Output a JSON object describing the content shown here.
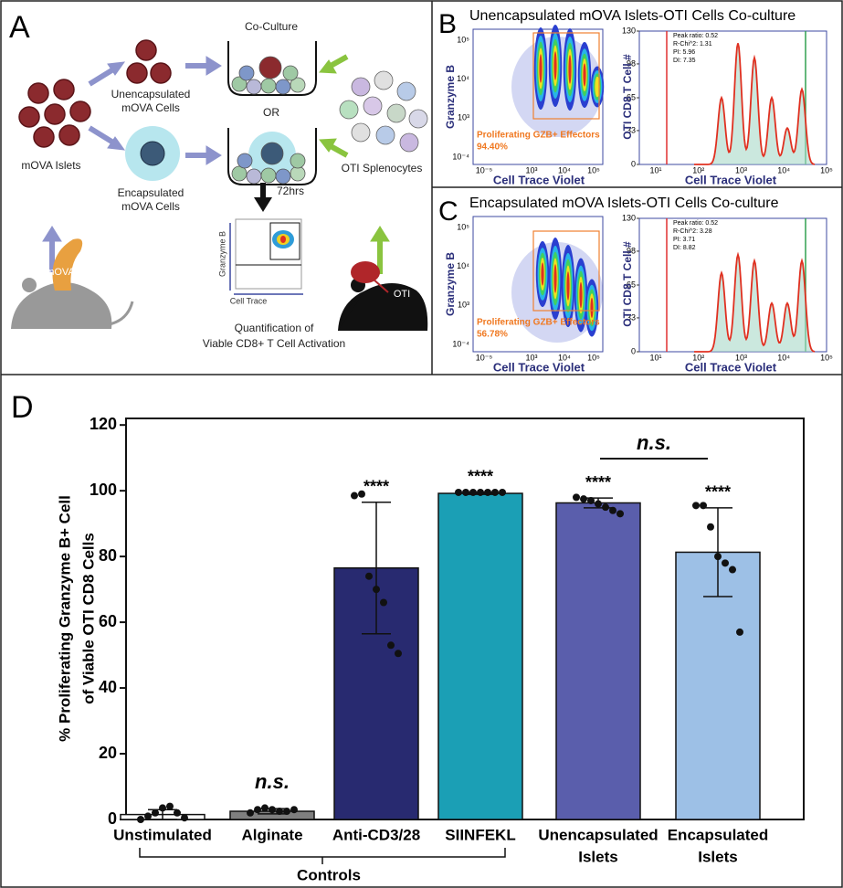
{
  "panel_a": {
    "label": "A",
    "co_culture": "Co-Culture",
    "unencapsulated": [
      "Unencapsulated",
      "mOVA Cells"
    ],
    "or": "OR",
    "islets": "mOVA Islets",
    "encapsulated": [
      "Encapsulated",
      "mOVA Cells"
    ],
    "splenocytes": "OTI Splenocytes",
    "time": "72hrs",
    "mini_y_label": "Granzyme B",
    "mini_x_label": "Cell Trace",
    "quantification": [
      "Quantification of",
      "Viable CD8+ T Cell Activation"
    ],
    "donor_mouse": "mOVA",
    "oti_mouse": "OTI"
  },
  "panel_b": {
    "label": "B",
    "title": "Unencapsulated mOVA Islets-OTI Cells Co-culture",
    "dot_plot": {
      "y_label": "Granzyme B",
      "x_label": "Cell Trace Violet",
      "yticks": [
        "10⁵",
        "10⁴",
        "10³",
        "10⁻⁴"
      ],
      "xticks": [
        "10⁻⁵",
        "10³",
        "10⁴",
        "10⁵"
      ],
      "gate_label": "Proliferating GZB+ Effectors",
      "gate_percent": "94.40%"
    },
    "histogram": {
      "y_label": "OTI CD8 T Cell #",
      "x_label": "Cell Trace Violet",
      "yticks": [
        130,
        98,
        65,
        33,
        0
      ],
      "xticks": [
        "10¹",
        "10²",
        "10³",
        "10⁴",
        "10⁵"
      ],
      "stats": [
        "Peak ratio: 0.52",
        "R-Chi^2: 1.31",
        "PI: 5.96",
        "DI: 7.35"
      ]
    }
  },
  "panel_c": {
    "label": "C",
    "title": "Encapsulated mOVA Islets-OTI Cells Co-culture",
    "dot_plot": {
      "y_label": "Granzyme B",
      "x_label": "Cell Trace Violet",
      "yticks": [
        "10⁵",
        "10⁴",
        "10³",
        "10⁻⁴"
      ],
      "xticks": [
        "10⁻⁵",
        "10³",
        "10⁴",
        "10⁵"
      ],
      "gate_label": "Proliferating GZB+ Effectors",
      "gate_percent": "56.78%"
    },
    "histogram": {
      "y_label": "OTI CD8 T Cell #",
      "x_label": "Cell Trace Violet",
      "yticks": [
        130,
        98,
        65,
        33,
        0
      ],
      "xticks": [
        "10¹",
        "10²",
        "10³",
        "10⁴",
        "10⁵"
      ],
      "stats": [
        "Peak ratio: 0.52",
        "R-Chi^2: 3.28",
        "PI: 3.71",
        "DI: 8.82"
      ]
    }
  },
  "chart_data": {
    "type": "bar",
    "label": "D",
    "y_label": [
      "% Proliferating Granzyme B+ Cell",
      "of Viable OTI CD8 Cells"
    ],
    "categories": [
      [
        "Unstimulated"
      ],
      [
        "Alginate"
      ],
      [
        "Anti-CD3/28"
      ],
      [
        "SIINFEKL"
      ],
      [
        "Unencapsulated",
        "Islets"
      ],
      [
        "Encapsulated",
        "Islets"
      ]
    ],
    "values": [
      1.5,
      2.5,
      76.5,
      99.2,
      96.3,
      81.3
    ],
    "errors": [
      1.5,
      0.8,
      20,
      0.3,
      1.5,
      13.5
    ],
    "colors": [
      "#ffffff",
      "#7f7f7f",
      "#282a70",
      "#1b9fb5",
      "#5a5eac",
      "#9dc0e6"
    ],
    "points": [
      [
        0,
        1,
        2,
        3.5,
        4,
        2,
        0.5
      ],
      [
        2,
        3,
        3.5,
        3,
        2.5,
        2.5,
        3
      ],
      [
        98.5,
        99,
        74,
        70,
        66,
        53,
        50.5
      ],
      [
        99.5,
        99.5,
        99.5,
        99.5,
        99.5,
        99.5,
        99.5
      ],
      [
        98,
        97.5,
        97,
        96,
        95,
        94,
        93
      ],
      [
        95.5,
        95.5,
        89,
        80,
        78,
        76,
        57
      ]
    ],
    "significance_labels": [
      null,
      "n.s.",
      "****",
      "****",
      "****",
      "****"
    ],
    "comparison_label": "n.s.",
    "group_label": "Controls",
    "ylim": [
      0,
      122
    ],
    "yticks": [
      0,
      20,
      40,
      60,
      80,
      100,
      120
    ]
  }
}
